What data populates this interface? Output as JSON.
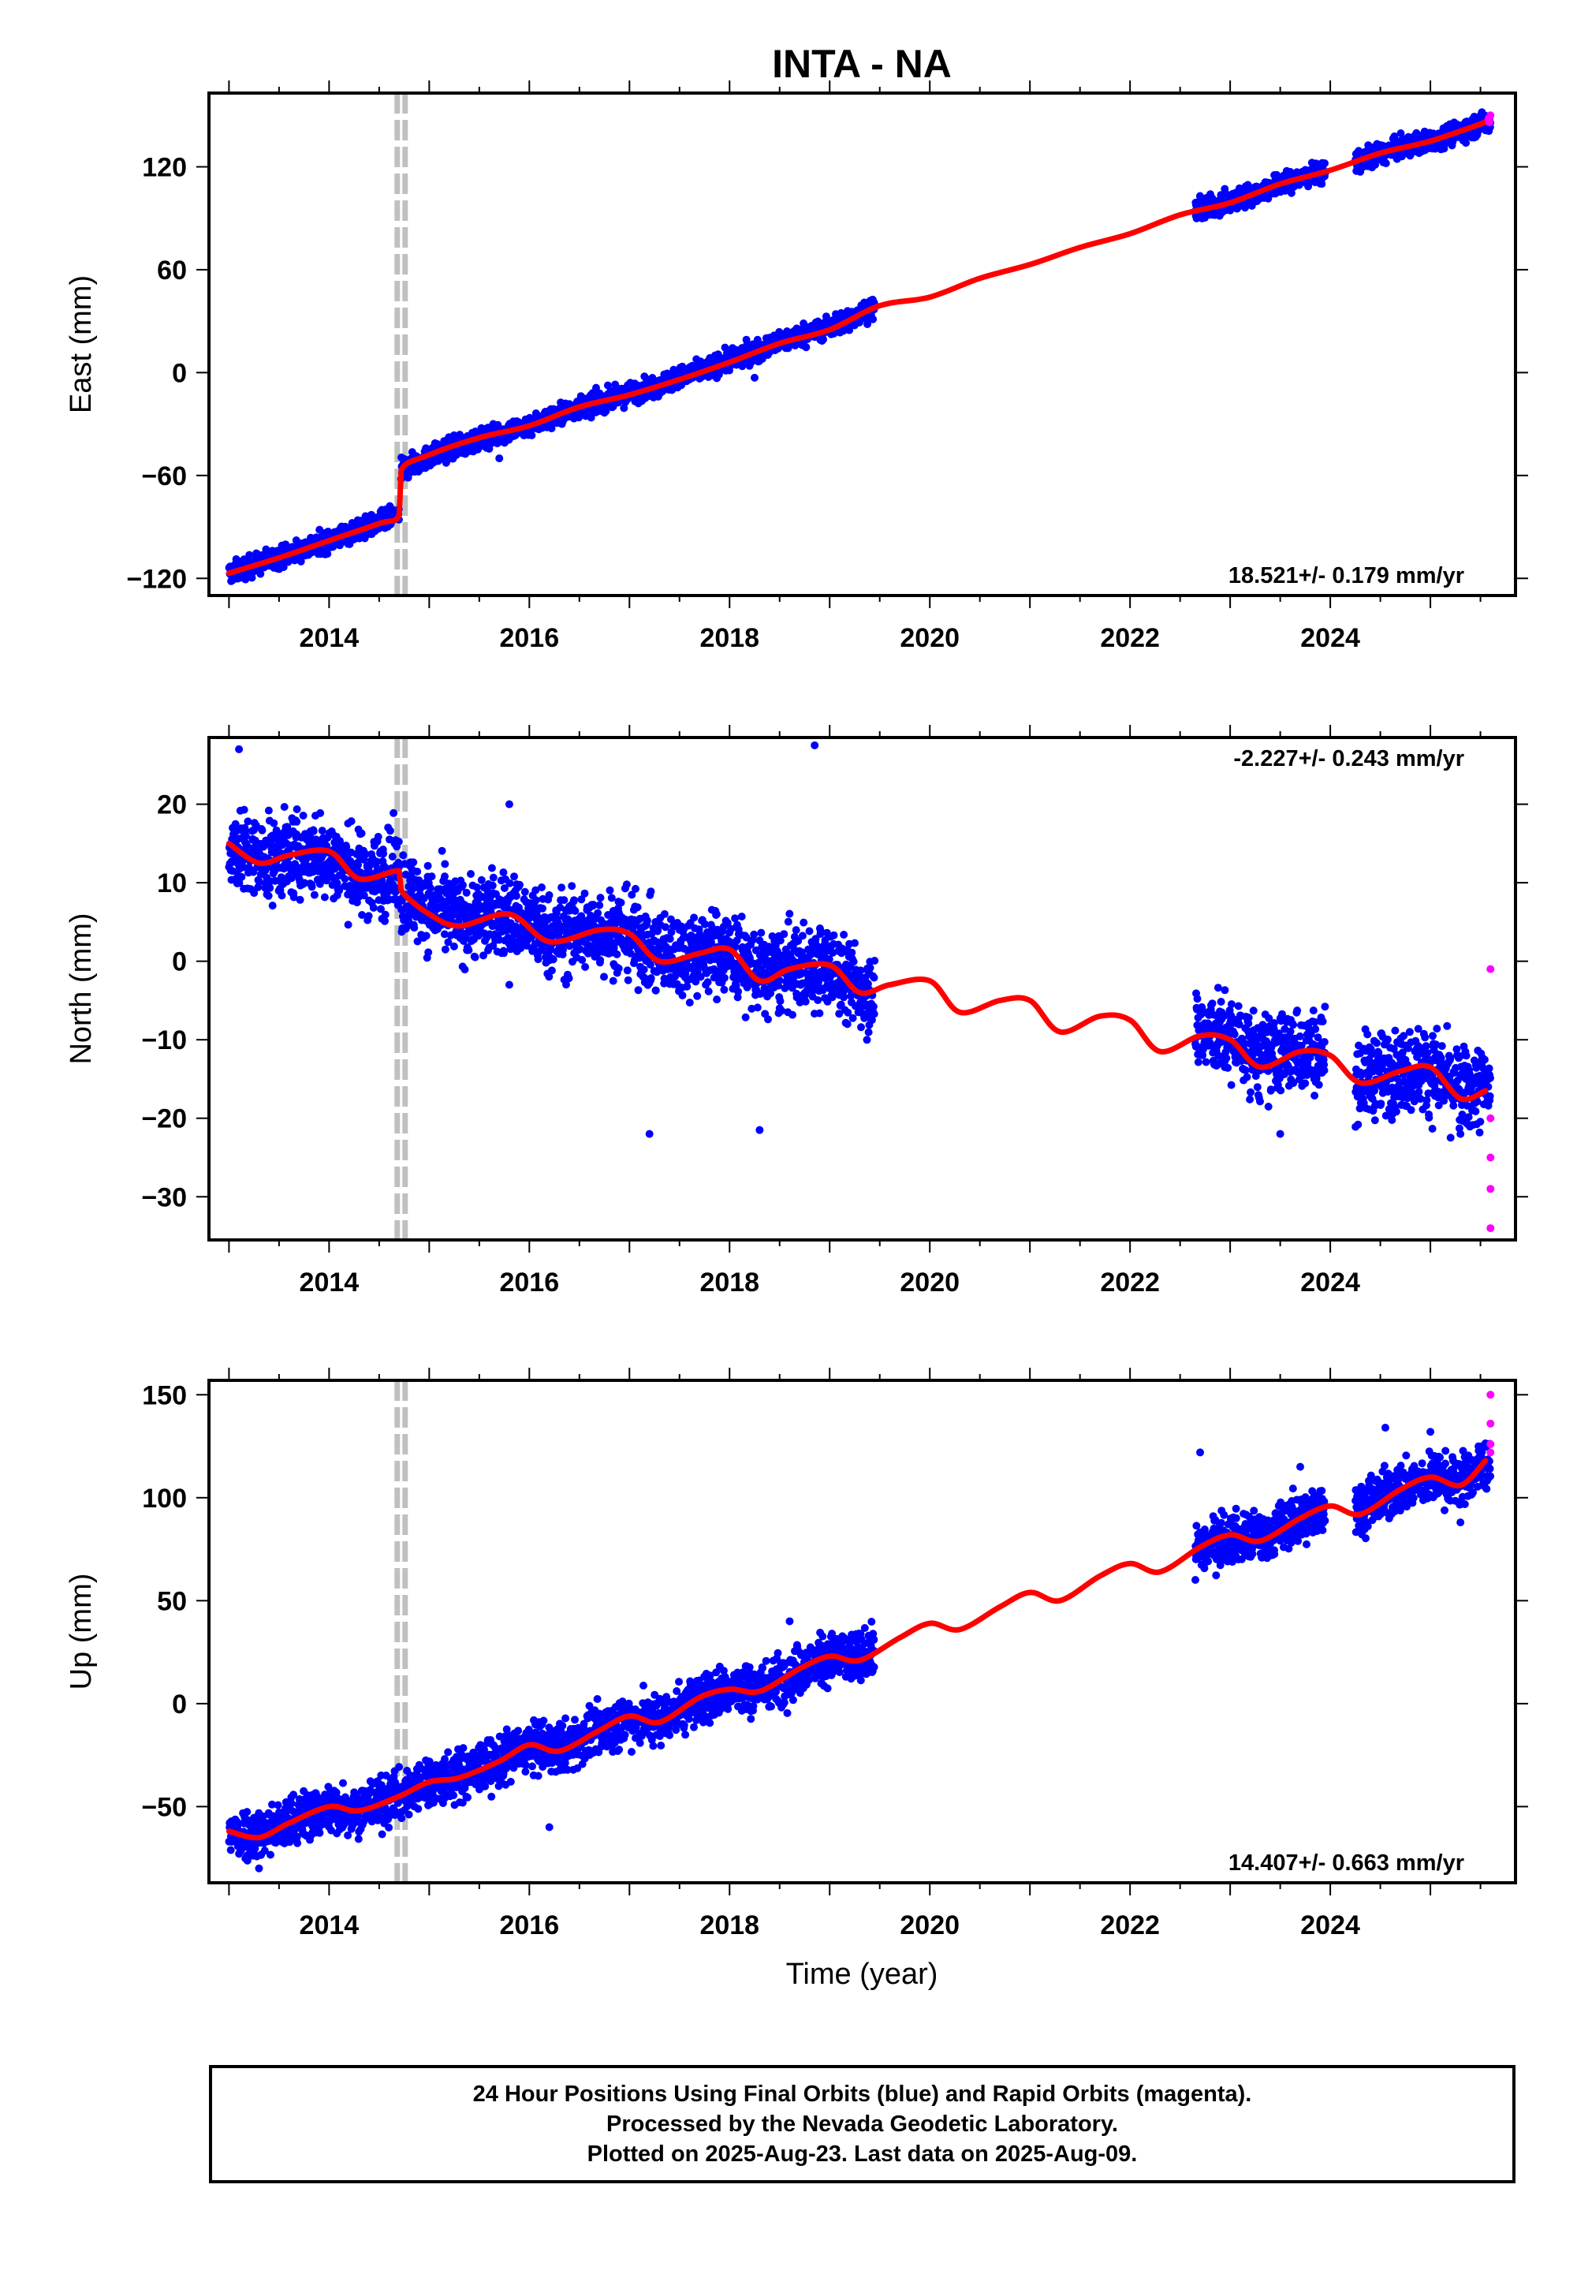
{
  "title": "INTA - NA",
  "x_axis_label": "Time (year)",
  "footer": {
    "lines": [
      "24 Hour Positions Using Final Orbits (blue) and Rapid Orbits (magenta).",
      "Processed by the Nevada Geodetic Laboratory.",
      "Plotted on 2025-Aug-23. Last data on 2025-Aug-09."
    ]
  },
  "colors": {
    "final_orbits": "#0000ff",
    "rapid_orbits": "#ff00ff",
    "model": "#ff0000",
    "event_marker": "#c0c0c0"
  },
  "chart_data": [
    {
      "type": "scatter",
      "name": "east",
      "ylabel": "East (mm)",
      "rate_label": "18.521+/- 0.179 mm/yr",
      "xlim": [
        2012.8,
        2025.85
      ],
      "ylim": [
        -130,
        163
      ],
      "xticks": [
        2014,
        2016,
        2018,
        2020,
        2022,
        2024
      ],
      "yticks": [
        -120,
        -60,
        0,
        60,
        120
      ],
      "event_x": 2014.72,
      "data_segments": [
        [
          2013.0,
          2014.7
        ],
        [
          2014.72,
          2019.45
        ],
        [
          2022.65,
          2023.95
        ],
        [
          2024.25,
          2025.6
        ]
      ],
      "model": [
        [
          2013.0,
          -117
        ],
        [
          2013.5,
          -108
        ],
        [
          2014.0,
          -98
        ],
        [
          2014.5,
          -88
        ],
        [
          2014.7,
          -83
        ],
        [
          2014.72,
          -57
        ],
        [
          2015.0,
          -48
        ],
        [
          2015.5,
          -38
        ],
        [
          2016.0,
          -31
        ],
        [
          2016.5,
          -20
        ],
        [
          2017.0,
          -13
        ],
        [
          2017.5,
          -4
        ],
        [
          2018.0,
          6
        ],
        [
          2018.5,
          17
        ],
        [
          2019.0,
          25
        ],
        [
          2019.5,
          39
        ],
        [
          2020.0,
          44
        ],
        [
          2020.5,
          55
        ],
        [
          2021.0,
          63
        ],
        [
          2021.5,
          73
        ],
        [
          2022.0,
          81
        ],
        [
          2022.5,
          92
        ],
        [
          2023.0,
          99
        ],
        [
          2023.5,
          110
        ],
        [
          2024.0,
          118
        ],
        [
          2024.5,
          128
        ],
        [
          2025.0,
          135
        ],
        [
          2025.55,
          146
        ]
      ],
      "scatter_trend": [
        [
          2013.0,
          -117
        ],
        [
          2014.7,
          -83
        ],
        [
          2014.72,
          -57
        ],
        [
          2019.45,
          39
        ],
        [
          2022.65,
          94
        ],
        [
          2023.95,
          117
        ],
        [
          2024.25,
          122
        ],
        [
          2025.6,
          146
        ]
      ],
      "scatter_spread": 3,
      "outliers": [
        [
          2018.25,
          -3
        ],
        [
          2015.7,
          -50
        ],
        [
          2014.72,
          -62
        ]
      ],
      "rapid_points": [
        [
          2025.58,
          148
        ],
        [
          2025.6,
          150
        ],
        [
          2025.59,
          146
        ]
      ]
    },
    {
      "type": "scatter",
      "name": "north",
      "ylabel": "North (mm)",
      "rate_label": "-2.227+/- 0.243 mm/yr",
      "xlim": [
        2012.8,
        2025.85
      ],
      "ylim": [
        -35.5,
        28.5
      ],
      "xticks": [
        2014,
        2016,
        2018,
        2020,
        2022,
        2024
      ],
      "yticks": [
        -30,
        -20,
        -10,
        0,
        10,
        20
      ],
      "event_x": 2014.72,
      "data_segments": [
        [
          2013.0,
          2014.7
        ],
        [
          2014.72,
          2019.45
        ],
        [
          2022.65,
          2023.95
        ],
        [
          2024.25,
          2025.6
        ]
      ],
      "model": [
        [
          2013.0,
          15
        ],
        [
          2013.3,
          12.5
        ],
        [
          2013.6,
          13.5
        ],
        [
          2014.0,
          14
        ],
        [
          2014.3,
          10.5
        ],
        [
          2014.7,
          11.5
        ],
        [
          2014.72,
          9
        ],
        [
          2015.0,
          6
        ],
        [
          2015.3,
          4.5
        ],
        [
          2015.8,
          6
        ],
        [
          2016.2,
          2.5
        ],
        [
          2016.7,
          4
        ],
        [
          2017.0,
          3.5
        ],
        [
          2017.3,
          0
        ],
        [
          2017.7,
          1
        ],
        [
          2018.0,
          1.5
        ],
        [
          2018.3,
          -2.5
        ],
        [
          2018.6,
          -1
        ],
        [
          2019.0,
          -0.5
        ],
        [
          2019.3,
          -4
        ],
        [
          2019.6,
          -3
        ],
        [
          2020.0,
          -2.5
        ],
        [
          2020.3,
          -6.5
        ],
        [
          2020.7,
          -5
        ],
        [
          2021.0,
          -5
        ],
        [
          2021.3,
          -9
        ],
        [
          2021.7,
          -7
        ],
        [
          2022.0,
          -7.5
        ],
        [
          2022.3,
          -11.5
        ],
        [
          2022.7,
          -9.5
        ],
        [
          2023.0,
          -10
        ],
        [
          2023.3,
          -13.5
        ],
        [
          2023.7,
          -11.5
        ],
        [
          2024.0,
          -12
        ],
        [
          2024.3,
          -15.5
        ],
        [
          2024.7,
          -14
        ],
        [
          2025.0,
          -13.5
        ],
        [
          2025.3,
          -17.5
        ],
        [
          2025.55,
          -16.5
        ]
      ],
      "scatter_trend": [
        [
          2013.0,
          14
        ],
        [
          2014.7,
          11
        ],
        [
          2014.72,
          9
        ],
        [
          2019.45,
          -3
        ],
        [
          2022.65,
          -8
        ],
        [
          2023.95,
          -11
        ],
        [
          2024.25,
          -13
        ],
        [
          2025.6,
          -15
        ]
      ],
      "scatter_spread": 2.6,
      "outliers": [
        [
          2013.1,
          27
        ],
        [
          2018.85,
          27.5
        ],
        [
          2015.8,
          20
        ],
        [
          2017.2,
          -22
        ],
        [
          2018.3,
          -21.5
        ],
        [
          2023.5,
          -22
        ],
        [
          2025.3,
          -22
        ],
        [
          2015.8,
          -3
        ]
      ],
      "rapid_points": [
        [
          2025.6,
          -1
        ],
        [
          2025.6,
          -20
        ],
        [
          2025.6,
          -25
        ],
        [
          2025.6,
          -29
        ],
        [
          2025.6,
          -34
        ]
      ]
    },
    {
      "type": "scatter",
      "name": "up",
      "ylabel": "Up (mm)",
      "rate_label": "14.407+/- 0.663 mm/yr",
      "xlim": [
        2012.8,
        2025.85
      ],
      "ylim": [
        -87,
        157
      ],
      "xticks": [
        2014,
        2016,
        2018,
        2020,
        2022,
        2024
      ],
      "yticks": [
        -50,
        0,
        50,
        100,
        150
      ],
      "event_x": 2014.72,
      "data_segments": [
        [
          2013.0,
          2014.7
        ],
        [
          2014.72,
          2019.45
        ],
        [
          2022.65,
          2023.95
        ],
        [
          2024.25,
          2025.6
        ]
      ],
      "model": [
        [
          2013.0,
          -62
        ],
        [
          2013.3,
          -65
        ],
        [
          2013.6,
          -58
        ],
        [
          2014.0,
          -50
        ],
        [
          2014.3,
          -52
        ],
        [
          2014.7,
          -45
        ],
        [
          2015.0,
          -38
        ],
        [
          2015.3,
          -36
        ],
        [
          2015.7,
          -28
        ],
        [
          2016.0,
          -20
        ],
        [
          2016.3,
          -23
        ],
        [
          2016.7,
          -13
        ],
        [
          2017.0,
          -6
        ],
        [
          2017.3,
          -9
        ],
        [
          2017.7,
          3
        ],
        [
          2018.0,
          7
        ],
        [
          2018.3,
          6
        ],
        [
          2018.7,
          17
        ],
        [
          2019.0,
          23
        ],
        [
          2019.3,
          21
        ],
        [
          2019.7,
          32
        ],
        [
          2020.0,
          39
        ],
        [
          2020.3,
          36
        ],
        [
          2020.7,
          47
        ],
        [
          2021.0,
          54
        ],
        [
          2021.3,
          50
        ],
        [
          2021.7,
          62
        ],
        [
          2022.0,
          68
        ],
        [
          2022.3,
          64
        ],
        [
          2022.7,
          76
        ],
        [
          2023.0,
          82
        ],
        [
          2023.3,
          79
        ],
        [
          2023.7,
          90
        ],
        [
          2024.0,
          96
        ],
        [
          2024.3,
          92
        ],
        [
          2024.7,
          104
        ],
        [
          2025.0,
          110
        ],
        [
          2025.3,
          106
        ],
        [
          2025.55,
          118
        ]
      ],
      "scatter_trend": [
        [
          2013.0,
          -64
        ],
        [
          2014.7,
          -44
        ],
        [
          2014.72,
          -42
        ],
        [
          2019.45,
          26
        ],
        [
          2022.65,
          74
        ],
        [
          2023.95,
          93
        ],
        [
          2024.25,
          102
        ],
        [
          2025.6,
          114
        ]
      ],
      "scatter_spread": 6,
      "outliers": [
        [
          2013.3,
          -80
        ],
        [
          2016.2,
          -60
        ],
        [
          2018.6,
          40
        ],
        [
          2022.7,
          122
        ],
        [
          2023.7,
          115
        ],
        [
          2024.55,
          134
        ],
        [
          2025.0,
          132
        ],
        [
          2025.3,
          88
        ]
      ],
      "rapid_points": [
        [
          2025.6,
          150
        ],
        [
          2025.6,
          136
        ],
        [
          2025.6,
          126
        ],
        [
          2025.6,
          122
        ]
      ]
    }
  ]
}
